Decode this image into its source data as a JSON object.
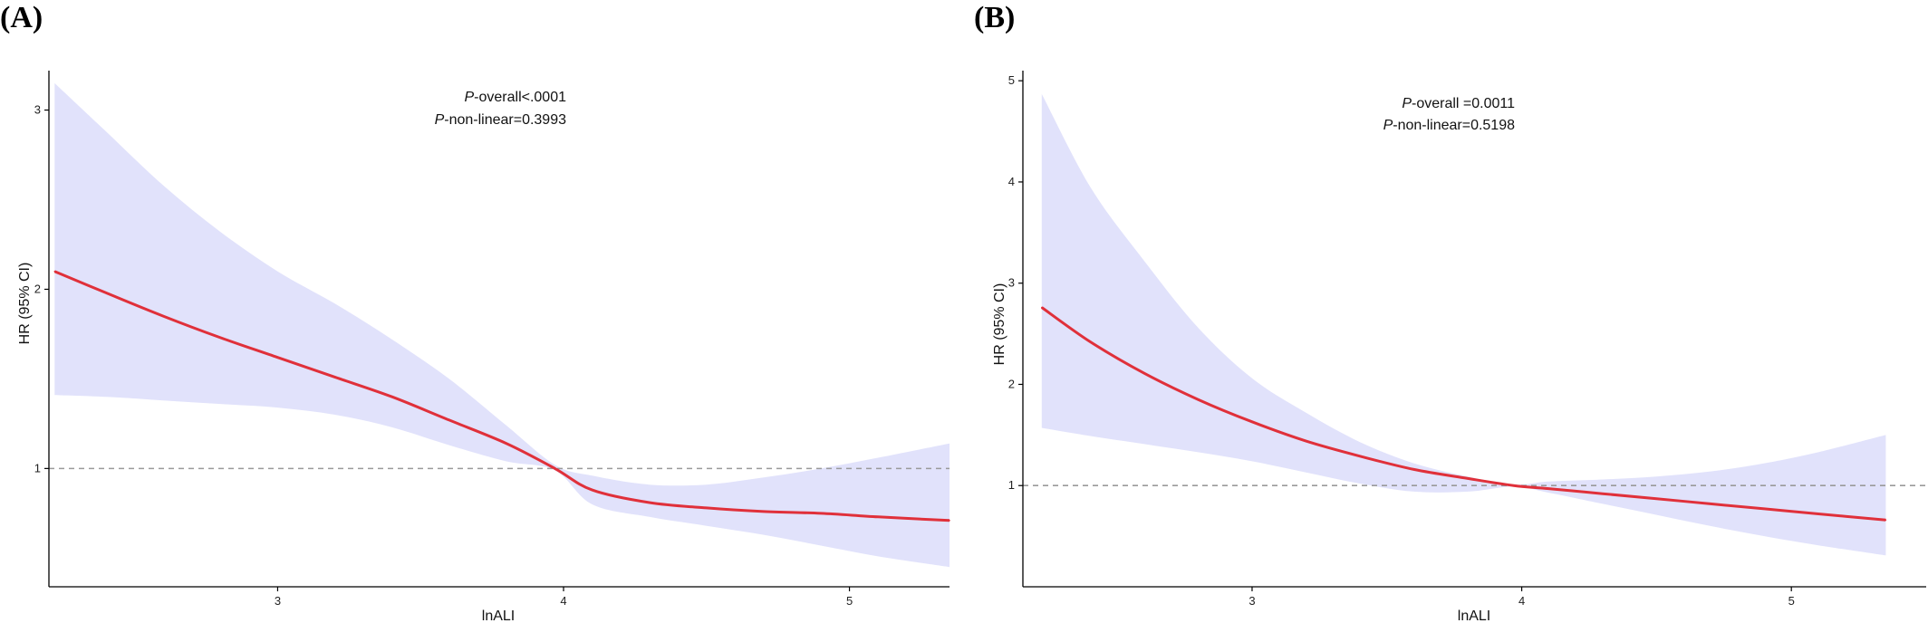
{
  "colors": {
    "curve": "#e0303a",
    "ci_band": "#e1e2fb",
    "reference_line": "#9a9a9a",
    "axis": "#000000"
  },
  "chart_data": [
    {
      "panel_label": "(A)",
      "type": "line",
      "xlabel": "lnALI",
      "ylabel": "HR (95% CI)",
      "xlim": [
        2.2,
        5.35
      ],
      "ylim": [
        0.34,
        3.22
      ],
      "xticks": [
        3,
        4,
        5
      ],
      "yticks": [
        1,
        2,
        3
      ],
      "reference_y": 1,
      "grid": false,
      "annotation": {
        "line1": {
          "prefix": "P",
          "text": "-overall<.0001"
        },
        "line2": {
          "prefix": "P",
          "text": "-non-linear=0.3993"
        }
      },
      "x": [
        2.22,
        2.4,
        2.6,
        2.8,
        3.0,
        3.2,
        3.4,
        3.6,
        3.8,
        3.97,
        4.1,
        4.3,
        4.5,
        4.7,
        4.9,
        5.1,
        5.35
      ],
      "y": [
        2.1,
        1.98,
        1.85,
        1.73,
        1.62,
        1.51,
        1.4,
        1.27,
        1.14,
        1.0,
        0.88,
        0.81,
        0.78,
        0.76,
        0.75,
        0.73,
        0.71
      ],
      "lower": [
        1.41,
        1.4,
        1.38,
        1.36,
        1.34,
        1.3,
        1.23,
        1.13,
        1.04,
        0.99,
        0.8,
        0.73,
        0.68,
        0.63,
        0.57,
        0.51,
        0.45
      ],
      "upper": [
        3.15,
        2.88,
        2.58,
        2.32,
        2.1,
        1.92,
        1.72,
        1.5,
        1.24,
        1.02,
        0.96,
        0.91,
        0.91,
        0.95,
        1.0,
        1.06,
        1.14
      ]
    },
    {
      "panel_label": "(B)",
      "type": "line",
      "xlabel": "lnALI",
      "ylabel": "HR (95% CI)",
      "xlim": [
        2.15,
        5.5
      ],
      "ylim": [
        0.0,
        5.1
      ],
      "xticks": [
        3,
        4,
        5
      ],
      "yticks": [
        1,
        2,
        3,
        4,
        5
      ],
      "reference_y": 1,
      "grid": false,
      "annotation": {
        "line1": {
          "prefix": "P",
          "text": "-overall =0.0011"
        },
        "line2": {
          "prefix": "P",
          "text": "-non-linear=0.5198"
        }
      },
      "x": [
        2.22,
        2.4,
        2.6,
        2.8,
        3.0,
        3.2,
        3.4,
        3.6,
        3.8,
        3.97,
        4.1,
        4.3,
        4.5,
        4.7,
        4.9,
        5.1,
        5.35
      ],
      "y": [
        2.76,
        2.42,
        2.11,
        1.85,
        1.63,
        1.44,
        1.29,
        1.16,
        1.07,
        1.0,
        0.97,
        0.92,
        0.87,
        0.82,
        0.77,
        0.72,
        0.66
      ],
      "lower": [
        1.57,
        1.49,
        1.41,
        1.33,
        1.24,
        1.13,
        1.02,
        0.94,
        0.94,
        0.99,
        0.93,
        0.82,
        0.71,
        0.6,
        0.5,
        0.41,
        0.31
      ],
      "upper": [
        4.87,
        3.95,
        3.22,
        2.56,
        2.06,
        1.72,
        1.43,
        1.22,
        1.09,
        1.01,
        1.04,
        1.06,
        1.09,
        1.14,
        1.22,
        1.33,
        1.5
      ]
    }
  ]
}
